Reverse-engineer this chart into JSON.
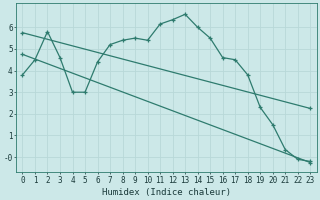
{
  "xlabel": "Humidex (Indice chaleur)",
  "bg_color": "#cce8e8",
  "grid_color": "#b8d8d8",
  "line_color": "#2e7b6e",
  "marker": "+",
  "xlim": [
    -0.5,
    23.5
  ],
  "ylim": [
    -0.7,
    7.1
  ],
  "xticks": [
    0,
    1,
    2,
    3,
    4,
    5,
    6,
    7,
    8,
    9,
    10,
    11,
    12,
    13,
    14,
    15,
    16,
    17,
    18,
    19,
    20,
    21,
    22,
    23
  ],
  "yticks": [
    0,
    1,
    2,
    3,
    4,
    5,
    6
  ],
  "ytick_labels": [
    "-0",
    "1",
    "2",
    "3",
    "4",
    "5",
    "6"
  ],
  "line1_x": [
    0,
    1,
    2,
    3,
    4,
    5,
    6,
    7,
    8,
    9,
    10,
    11,
    12,
    13,
    14,
    15,
    16,
    17,
    18,
    19,
    20,
    21,
    22,
    23
  ],
  "line1_y": [
    3.8,
    4.5,
    5.8,
    4.6,
    3.0,
    3.0,
    4.4,
    5.2,
    5.4,
    5.5,
    5.4,
    6.15,
    6.35,
    6.6,
    6.0,
    5.5,
    4.6,
    4.5,
    3.8,
    2.3,
    1.5,
    0.35,
    -0.1,
    -0.2
  ],
  "line2_x": [
    0,
    23
  ],
  "line2_y": [
    5.75,
    2.25
  ],
  "line3_x": [
    0,
    23
  ],
  "line3_y": [
    4.75,
    -0.25
  ],
  "tick_fontsize": 5.5,
  "xlabel_fontsize": 6.5
}
